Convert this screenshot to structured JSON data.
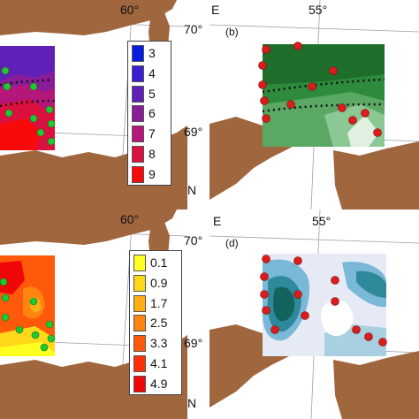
{
  "panels": {
    "a": {
      "lon_label": "60°",
      "lat_top": "70°",
      "lat_bottom": "69°",
      "north": "N",
      "legend": [
        {
          "value": "3",
          "color": "#0a1be0"
        },
        {
          "value": "4",
          "color": "#3a1fd0"
        },
        {
          "value": "5",
          "color": "#6020b8"
        },
        {
          "value": "6",
          "color": "#8a1c9a"
        },
        {
          "value": "7",
          "color": "#b4167a"
        },
        {
          "value": "8",
          "color": "#dc1040"
        },
        {
          "value": "9",
          "color": "#f80a0a"
        }
      ]
    },
    "b": {
      "east": "E",
      "lon_label": "55°",
      "letter": "(b)"
    },
    "c": {
      "lon_label": "60°",
      "lat_top": "70°",
      "lat_bottom": "69°",
      "north": "N",
      "legend": [
        {
          "value": "0.1",
          "color": "#ffff20"
        },
        {
          "value": "0.9",
          "color": "#ffd81a"
        },
        {
          "value": "1.7",
          "color": "#ffae14"
        },
        {
          "value": "2.5",
          "color": "#ff8410"
        },
        {
          "value": "3.3",
          "color": "#ff5a0c"
        },
        {
          "value": "4.1",
          "color": "#ff3008"
        },
        {
          "value": "4.9",
          "color": "#f00808"
        }
      ]
    },
    "d": {
      "east": "E",
      "lon_label": "55°",
      "letter": "(d)"
    }
  },
  "colors": {
    "land": "#a0663e",
    "station_green": "#22c830",
    "station_red": "#d91c1c",
    "front_line": "#111111",
    "grid_line": "#9aa0a8"
  }
}
